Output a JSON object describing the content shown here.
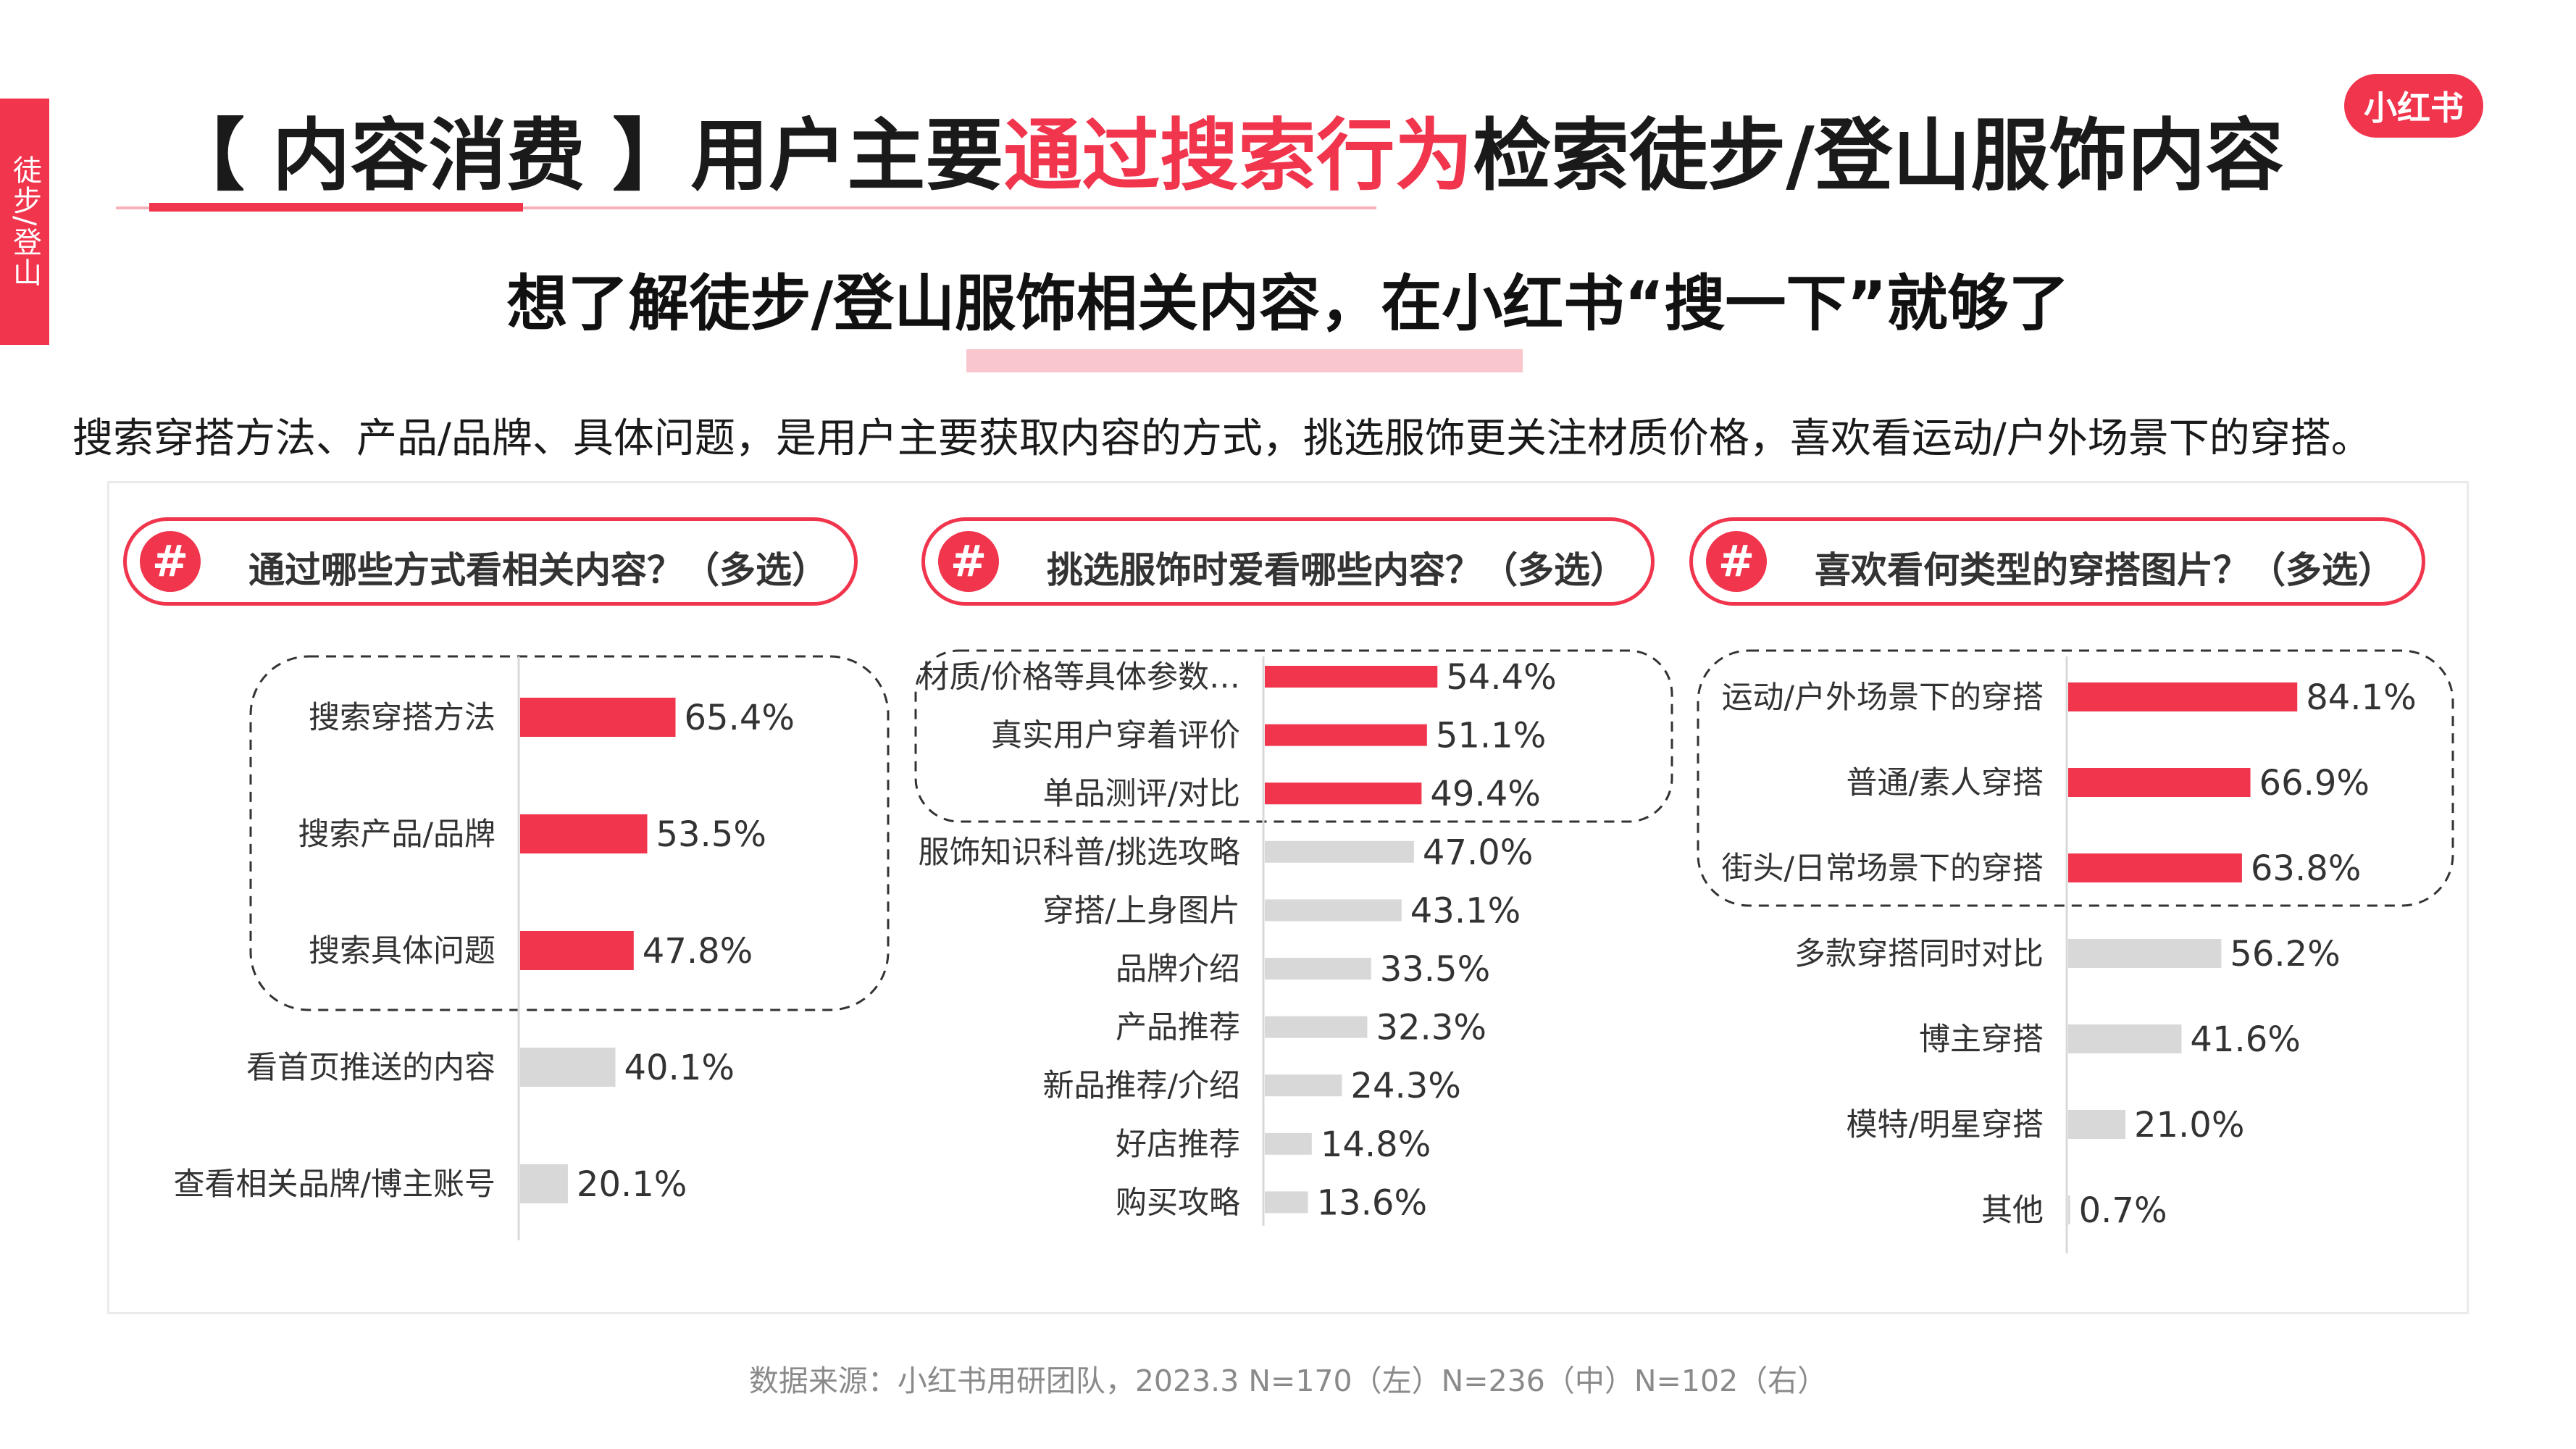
{
  "side_tab": "徒步/登山",
  "logo": "小红书",
  "title": {
    "before": "【 内容消费 】用户主要",
    "highlight": "通过搜索行为",
    "after": "检索徒步/登山服饰内容"
  },
  "subtitle": "想了解徒步/登山服饰相关内容，在小红书“搜一下”就够了",
  "description": "搜索穿搭方法、产品/品牌、具体问题，是用户主要获取内容的方式，挑选服饰更关注材质价格，喜欢看运动/户外场景下的穿搭。",
  "colors": {
    "accent": "#f0354d",
    "bar_highlight": "#f0354d",
    "bar_normal": "#d8d8d8"
  },
  "icons": {
    "question_badge": "hash-icon"
  },
  "chart_data": [
    {
      "type": "bar",
      "title": "通过哪些方式看相关内容？（多选）",
      "categories": [
        "搜索穿搭方法",
        "搜索产品/品牌",
        "搜索具体问题",
        "看首页推送的内容",
        "查看相关品牌/博主账号"
      ],
      "values": [
        65.4,
        53.5,
        47.8,
        40.1,
        20.1
      ],
      "value_labels": [
        "65.4%",
        "53.5%",
        "47.8%",
        "40.1%",
        "20.1%"
      ],
      "highlighted_count": 3,
      "unit": "%"
    },
    {
      "type": "bar",
      "title": "挑选服饰时爱看哪些内容？（多选）",
      "categories": [
        "材质/价格等具体参数…",
        "真实用户穿着评价",
        "单品测评/对比",
        "服饰知识科普/挑选攻略",
        "穿搭/上身图片",
        "品牌介绍",
        "产品推荐",
        "新品推荐/介绍",
        "好店推荐",
        "购买攻略"
      ],
      "values": [
        54.4,
        51.1,
        49.4,
        47.0,
        43.1,
        33.5,
        32.3,
        24.3,
        14.8,
        13.6
      ],
      "value_labels": [
        "54.4%",
        "51.1%",
        "49.4%",
        "47.0%",
        "43.1%",
        "33.5%",
        "32.3%",
        "24.3%",
        "14.8%",
        "13.6%"
      ],
      "highlighted_count": 3,
      "unit": "%"
    },
    {
      "type": "bar",
      "title": "喜欢看何类型的穿搭图片？（多选）",
      "categories": [
        "运动/户外场景下的穿搭",
        "普通/素人穿搭",
        "街头/日常场景下的穿搭",
        "多款穿搭同时对比",
        "博主穿搭",
        "模特/明星穿搭",
        "其他"
      ],
      "values": [
        84.1,
        66.9,
        63.8,
        56.2,
        41.6,
        21.0,
        0.7
      ],
      "value_labels": [
        "84.1%",
        "66.9%",
        "63.8%",
        "56.2%",
        "41.6%",
        "21.0%",
        "0.7%"
      ],
      "highlighted_count": 3,
      "unit": "%"
    }
  ],
  "footer": "数据来源：小红书用研团队，2023.3 N=170（左）N=236（中）N=102（右）"
}
